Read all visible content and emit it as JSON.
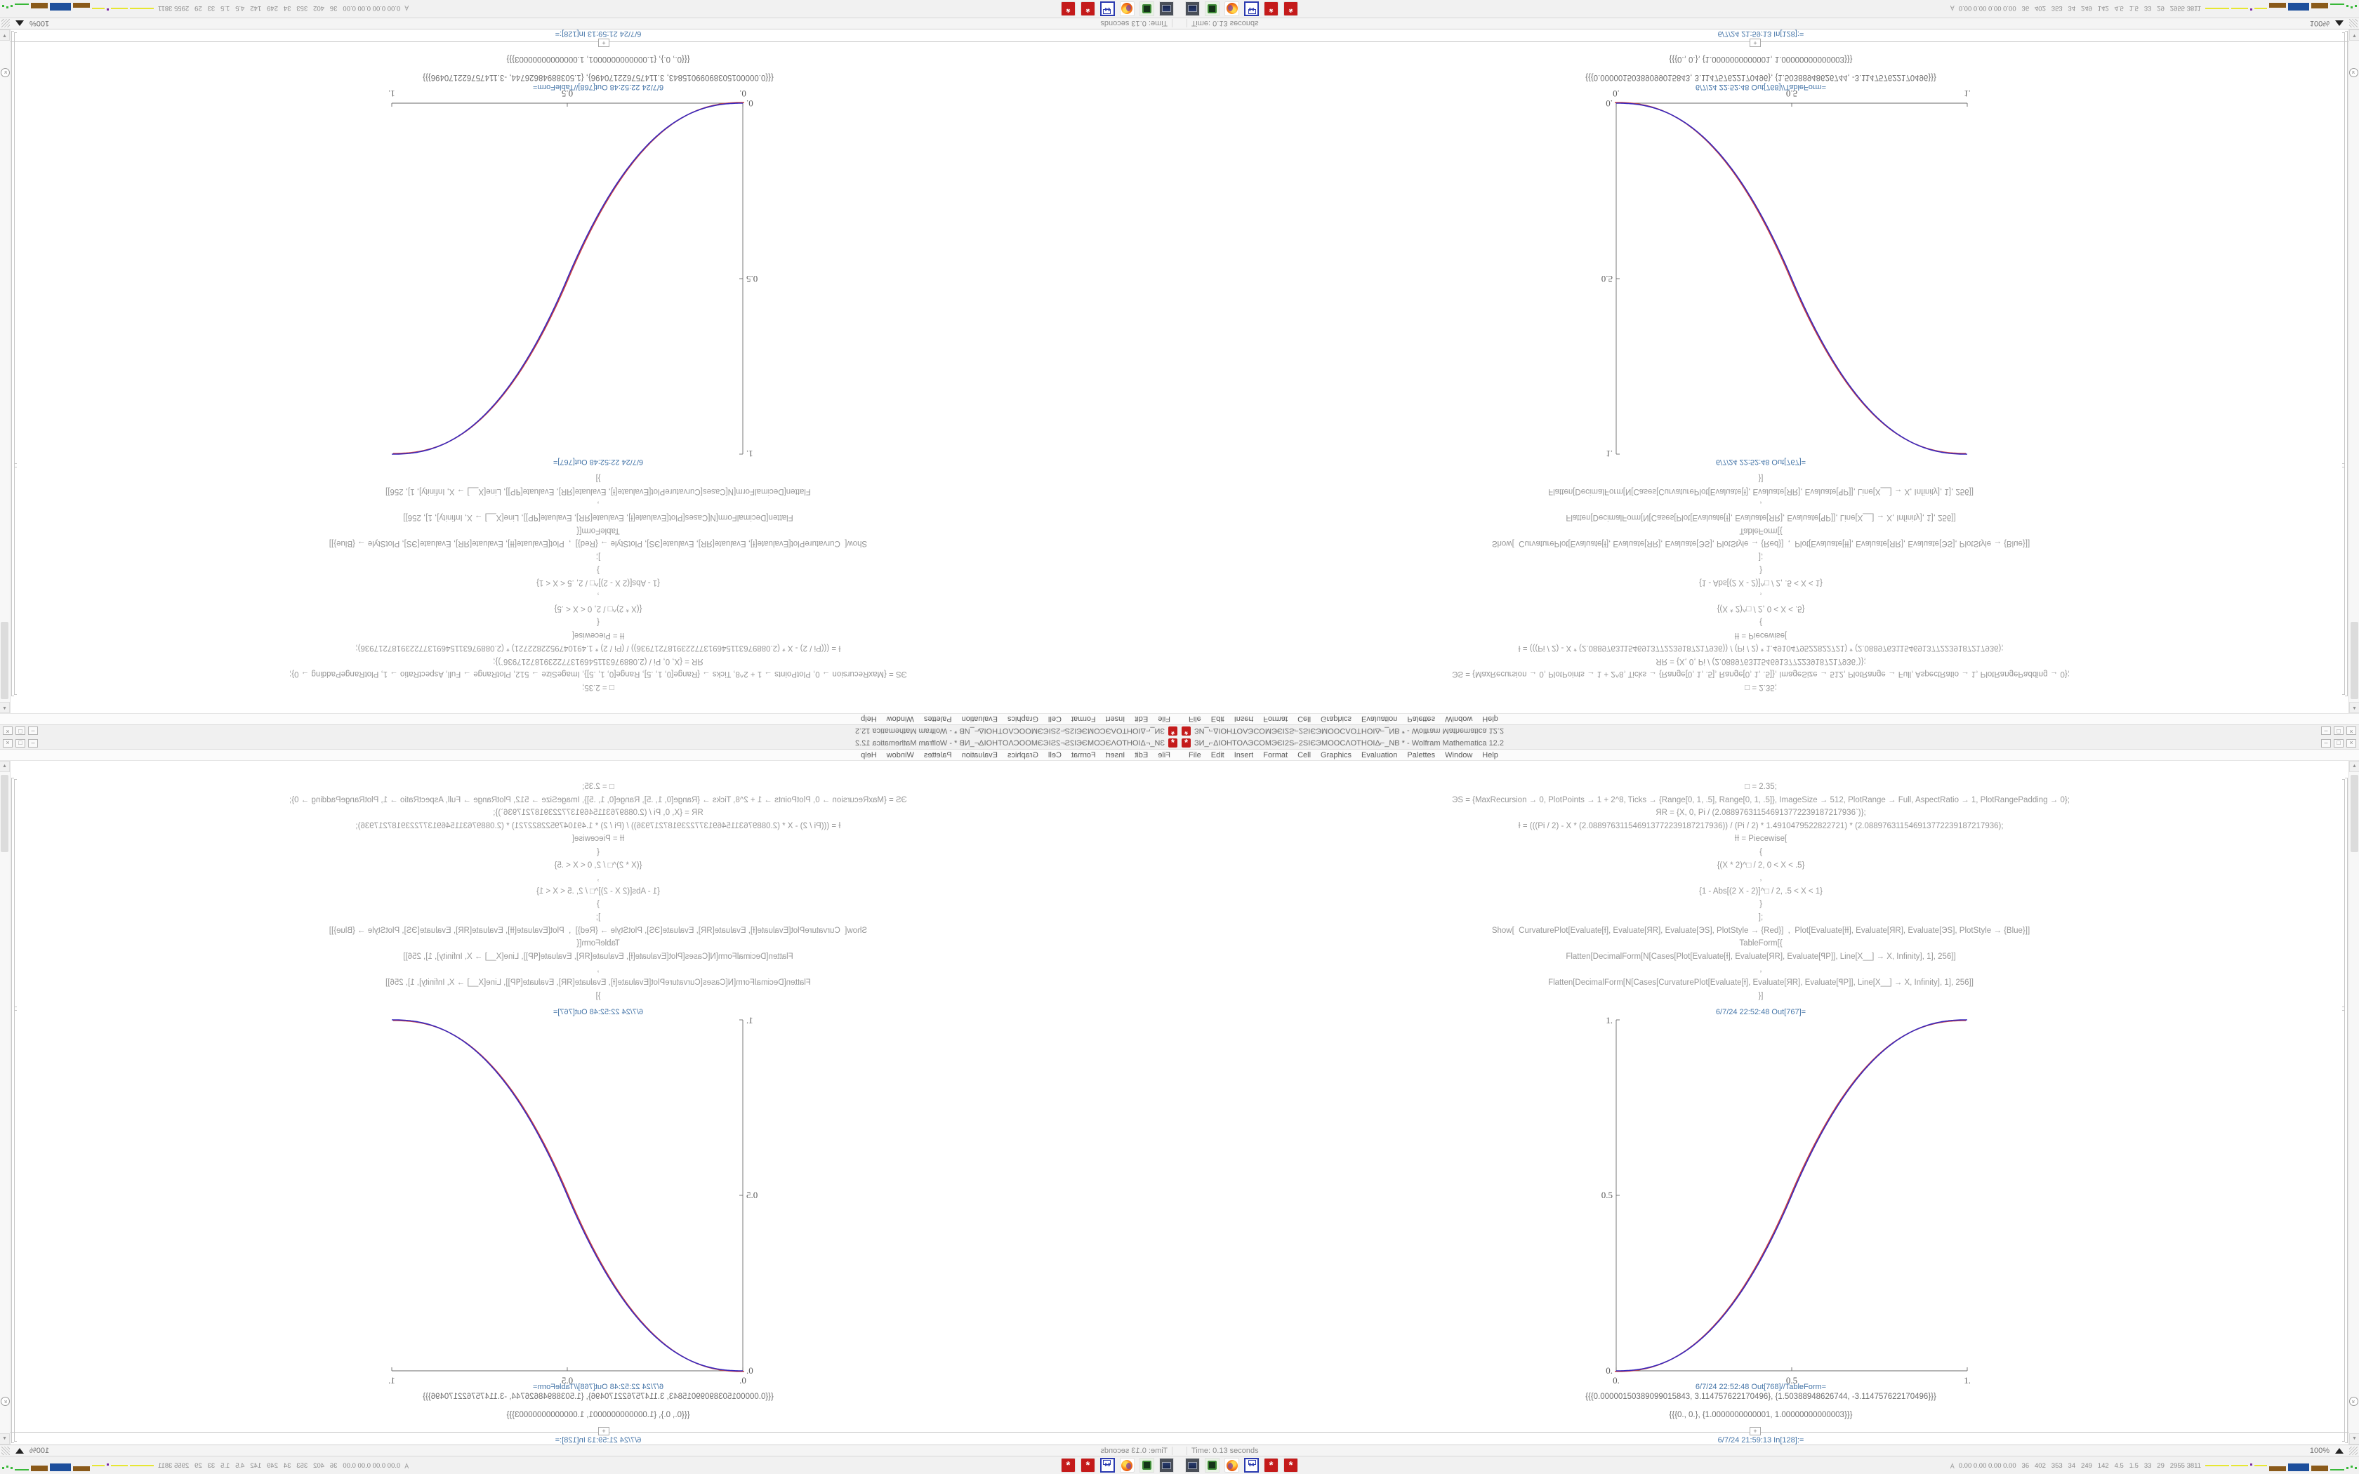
{
  "window": {
    "title": "ЗИ_⌐ΔIOHTOΛЭCOMЭЄI2Ѕ⌐2ЅIЄЭMOOCΛOTHOIΔ⌐_NB * - Wolfram Mathematica 12.2",
    "controls": {
      "minimize": "–",
      "maximize": "□",
      "close": "×"
    }
  },
  "menu": {
    "items": [
      "File",
      "Edit",
      "Insert",
      "Format",
      "Cell",
      "Graphics",
      "Evaluation",
      "Palettes",
      "Window",
      "Help"
    ]
  },
  "notebook": {
    "code_lines": [
      "□ = 2.35;",
      "ЭЅ = {MaxRecursion → 0, PlotPoints → 1 + 2^8, Ticks → {Range[0, 1, .5], Range[0, 1, .5]}, ImageSize → 512, PlotRange → Full, AspectRatio → 1, PlotRangePadding → 0};",
      "ЯR = {X, 0, Pi / (2.088976311546913772239187217936`)};",
      "Ɨ = (((Pi / 2) - X * (2.088976311546913772239187217936)) / (Pi / 2) * 1.4910479522822721) * (2.088976311546913772239187217936);",
      "ƗƗ = Piecewise[",
      "{",
      "{(X * 2)^□ / 2, 0 < X < .5}",
      ",",
      "{1 - Abs[(2 X - 2)]^□ / 2, .5 < X < 1}",
      "}",
      "];",
      "Show[  CurvaturePlot[Evaluate[Ɨ], Evaluate[ЯR], Evaluate[ЭЅ], PlotStyle → {Red}]  ,  Plot[Evaluate[ƗƗ], Evaluate[ЯR], Evaluate[ЭЅ], PlotStyle → {Blue}]]",
      "TableForm[{",
      "Flatten[DecimalForm[N[Cases[Plot[Evaluate[Ɨ], Evaluate[ЯR], Evaluate[ꟼP]], Line[X__] → X, Infinity], 1], 256]]",
      ",",
      "Flatten[DecimalForm[N[Cases[CurvaturePlot[Evaluate[Ɨ], Evaluate[ЯR], Evaluate[ꟼP]], Line[X__] → X, Infinity], 1], 256]]",
      "}]"
    ],
    "out1_label": "6/7/24 22:52:48 Out[767]=",
    "out2_label": "6/7/24 22:52:48 Out[768]//TableForm=",
    "table_rows": [
      "{{{0.00000150389099015843, 3.114757622170496}, {1.50388948626744, -3.114757622170496}}}",
      "{{{0., 0.}, {1.0000000000001, 1.00000000000003}}}"
    ],
    "insert_plus": "+",
    "next_in_label": "6/7/24 21:59:13 In[128]:="
  },
  "status": {
    "left": "Time: 0.13 seconds",
    "zoom": "100%"
  },
  "taskbar": {
    "icons": [
      "computer-monitor",
      "green-terminal",
      "firefox",
      "floppy-64",
      "wolfram-mathematica",
      "wolfram-mathematica"
    ],
    "floppy_label": "64",
    "wolfram_glyph": "*",
    "tray_user_glyph": "Ȧ",
    "tray_text": "0.00 0.00 0.00 0.00   36   402   353   34   249   142   4.5   1.5   33   29   2955 3811",
    "spark_blocks": [
      {
        "color": "#e6e632",
        "w": 34,
        "h": 2,
        "lift": 7
      },
      {
        "color": "#e6e632",
        "w": 24,
        "h": 2,
        "lift": 7
      },
      {
        "color": "#7a28a0",
        "w": 3,
        "h": 3,
        "lift": 8
      },
      {
        "color": "#e6e632",
        "w": 18,
        "h": 2,
        "lift": 7
      },
      {
        "color": "#8a5a1a",
        "w": 24,
        "h": 7,
        "lift": 0
      },
      {
        "color": "#1d4f9c",
        "w": 30,
        "h": 11,
        "lift": 0
      },
      {
        "color": "#8a5a1a",
        "w": 24,
        "h": 8,
        "lift": 0
      },
      {
        "color": "#38b838",
        "w": 20,
        "h": 2,
        "lift": 1
      },
      {
        "color": "#38b838",
        "w": 3,
        "h": 3,
        "lift": 3
      },
      {
        "color": "#38b838",
        "w": 3,
        "h": 3,
        "lift": 5
      },
      {
        "color": "#38b838",
        "w": 3,
        "h": 3,
        "lift": 3
      }
    ]
  },
  "chart_data": {
    "type": "line",
    "title": "Out[767]= Show of CurvaturePlot (Red) and piecewise power smoothstep Plot (Blue)",
    "x": [
      0,
      0.1,
      0.2,
      0.3,
      0.4,
      0.5,
      0.6,
      0.7,
      0.8,
      0.9,
      1.0
    ],
    "series": [
      {
        "name": "CurvaturePlot Evaluate[Ɨ]",
        "color": "#cc4040",
        "values": [
          0,
          0.0125,
          0.06,
          0.153,
          0.299,
          0.504,
          0.707,
          0.852,
          0.9435,
          0.989,
          1.0
        ]
      },
      {
        "name": "Plot Evaluate[ƗƗ]",
        "color": "#3a28bc",
        "values": [
          0,
          0.0114,
          0.058,
          0.1505,
          0.2961,
          0.5,
          0.7039,
          0.8495,
          0.942,
          0.9886,
          1.0
        ]
      }
    ],
    "piecewise_exponent": 2.35,
    "xlabel": "",
    "ylabel": "",
    "xlim": [
      0,
      1
    ],
    "ylim": [
      0,
      1
    ],
    "xticks": [
      0,
      0.5,
      1
    ],
    "yticks": [
      0,
      0.5,
      1
    ],
    "xtick_labels": [
      "0.",
      "0.5",
      "1."
    ],
    "ytick_labels": [
      "0.",
      "0.5",
      "1."
    ],
    "grid": false,
    "legend": "none"
  },
  "layout_note": {
    "quadrants": [
      "rotated-180",
      "flipped-vertical",
      "mirrored-horizontal",
      "original"
    ]
  }
}
